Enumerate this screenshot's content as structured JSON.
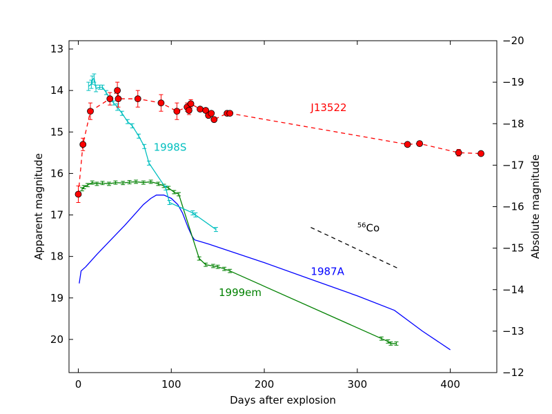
{
  "chart_data": {
    "type": "line",
    "xlabel": "Days after explosion",
    "ylabel_left": "Apparent magnitude",
    "ylabel_right": "Absolute magnitude",
    "xlim": [
      -10,
      450
    ],
    "ylim_left": [
      20.8,
      12.8
    ],
    "ylim_right": [
      -12,
      -20
    ],
    "x_ticks": [
      0,
      100,
      200,
      300,
      400
    ],
    "y_ticks_left": [
      13,
      14,
      15,
      16,
      17,
      18,
      19,
      20
    ],
    "y_ticks_right": [
      -20,
      -19,
      -18,
      -17,
      -16,
      -15,
      -14,
      -13,
      -12
    ],
    "grid": false,
    "series": [
      {
        "name": "J13522",
        "color": "#ff0000",
        "style": "dashed-with-markers",
        "points": [
          {
            "x": 0,
            "y": 16.5,
            "err": 0.2
          },
          {
            "x": 5,
            "y": 15.3,
            "err": 0.15
          },
          {
            "x": 13,
            "y": 14.5,
            "err": 0.2
          },
          {
            "x": 34,
            "y": 14.2,
            "err": 0.15
          },
          {
            "x": 42,
            "y": 14.0,
            "err": 0.2
          },
          {
            "x": 43,
            "y": 14.2,
            "err": 0.2
          },
          {
            "x": 64,
            "y": 14.2,
            "err": 0.2
          },
          {
            "x": 89,
            "y": 14.3,
            "err": 0.2
          },
          {
            "x": 106,
            "y": 14.5,
            "err": 0.2
          },
          {
            "x": 117,
            "y": 14.4,
            "err": 0.1
          },
          {
            "x": 119,
            "y": 14.48,
            "err": 0.1
          },
          {
            "x": 121,
            "y": 14.32,
            "err": 0.1
          },
          {
            "x": 131,
            "y": 14.45,
            "err": 0.05
          },
          {
            "x": 137,
            "y": 14.48,
            "err": 0.05
          },
          {
            "x": 140,
            "y": 14.6,
            "err": 0.05
          },
          {
            "x": 143,
            "y": 14.55,
            "err": 0.05
          },
          {
            "x": 146,
            "y": 14.7,
            "err": 0.05
          },
          {
            "x": 160,
            "y": 14.55,
            "err": 0.05
          },
          {
            "x": 163,
            "y": 14.55,
            "err": 0.05
          },
          {
            "x": 354,
            "y": 15.3,
            "err": 0.05
          },
          {
            "x": 367,
            "y": 15.28,
            "err": 0.05
          },
          {
            "x": 409,
            "y": 15.5,
            "err": 0.08
          },
          {
            "x": 433,
            "y": 15.52,
            "err": 0.05
          }
        ]
      },
      {
        "name": "1998S",
        "color": "#00bfbf",
        "style": "line-with-errorbars",
        "points": [
          {
            "x": 11,
            "y": 13.9,
            "err": 0.1
          },
          {
            "x": 14,
            "y": 13.85,
            "err": 0.1
          },
          {
            "x": 15,
            "y": 13.75,
            "err": 0.1
          },
          {
            "x": 17,
            "y": 13.7,
            "err": 0.1
          },
          {
            "x": 19,
            "y": 13.95,
            "err": 0.08
          },
          {
            "x": 23,
            "y": 13.92,
            "err": 0.05
          },
          {
            "x": 26,
            "y": 13.92,
            "err": 0.05
          },
          {
            "x": 30,
            "y": 14.05,
            "err": 0.05
          },
          {
            "x": 34,
            "y": 14.2,
            "err": 0.05
          },
          {
            "x": 38,
            "y": 14.3,
            "err": 0.05
          },
          {
            "x": 42,
            "y": 14.4,
            "err": 0.08
          },
          {
            "x": 47,
            "y": 14.55,
            "err": 0.05
          },
          {
            "x": 53,
            "y": 14.75,
            "err": 0.05
          },
          {
            "x": 58,
            "y": 14.85,
            "err": 0.05
          },
          {
            "x": 65,
            "y": 15.1,
            "err": 0.05
          },
          {
            "x": 71,
            "y": 15.35,
            "err": 0.05
          },
          {
            "x": 76,
            "y": 15.75,
            "err": 0.05
          },
          {
            "x": 94,
            "y": 16.35,
            "err": 0.05
          },
          {
            "x": 98,
            "y": 16.7,
            "err": 0.05
          },
          {
            "x": 123,
            "y": 16.95,
            "err": 0.05
          },
          {
            "x": 126,
            "y": 17.0,
            "err": 0.05
          },
          {
            "x": 148,
            "y": 17.35,
            "err": 0.05
          }
        ]
      },
      {
        "name": "1999em",
        "color": "#008000",
        "style": "line-with-errorbars",
        "points": [
          {
            "x": 4,
            "y": 16.38
          },
          {
            "x": 6,
            "y": 16.33
          },
          {
            "x": 10,
            "y": 16.28
          },
          {
            "x": 15,
            "y": 16.22
          },
          {
            "x": 20,
            "y": 16.25
          },
          {
            "x": 26,
            "y": 16.23
          },
          {
            "x": 33,
            "y": 16.25
          },
          {
            "x": 40,
            "y": 16.22
          },
          {
            "x": 48,
            "y": 16.23
          },
          {
            "x": 55,
            "y": 16.21
          },
          {
            "x": 62,
            "y": 16.2
          },
          {
            "x": 70,
            "y": 16.22
          },
          {
            "x": 78,
            "y": 16.2
          },
          {
            "x": 86,
            "y": 16.25
          },
          {
            "x": 92,
            "y": 16.3
          },
          {
            "x": 97,
            "y": 16.35
          },
          {
            "x": 103,
            "y": 16.45
          },
          {
            "x": 108,
            "y": 16.5
          },
          {
            "x": 130,
            "y": 18.05
          },
          {
            "x": 137,
            "y": 18.2
          },
          {
            "x": 145,
            "y": 18.23
          },
          {
            "x": 150,
            "y": 18.25
          },
          {
            "x": 157,
            "y": 18.3
          },
          {
            "x": 163,
            "y": 18.35
          },
          {
            "x": 326,
            "y": 19.98
          },
          {
            "x": 333,
            "y": 20.05
          },
          {
            "x": 336,
            "y": 20.1
          },
          {
            "x": 342,
            "y": 20.1
          }
        ]
      },
      {
        "name": "1987A",
        "color": "#0000ff",
        "style": "line",
        "points": [
          {
            "x": 1,
            "y": 18.65
          },
          {
            "x": 3,
            "y": 18.35
          },
          {
            "x": 8,
            "y": 18.25
          },
          {
            "x": 20,
            "y": 17.95
          },
          {
            "x": 35,
            "y": 17.6
          },
          {
            "x": 50,
            "y": 17.25
          },
          {
            "x": 60,
            "y": 17.0
          },
          {
            "x": 70,
            "y": 16.75
          },
          {
            "x": 78,
            "y": 16.6
          },
          {
            "x": 84,
            "y": 16.52
          },
          {
            "x": 92,
            "y": 16.52
          },
          {
            "x": 100,
            "y": 16.6
          },
          {
            "x": 107,
            "y": 16.75
          },
          {
            "x": 112,
            "y": 16.95
          },
          {
            "x": 118,
            "y": 17.3
          },
          {
            "x": 122,
            "y": 17.5
          },
          {
            "x": 125,
            "y": 17.6
          },
          {
            "x": 140,
            "y": 17.7
          },
          {
            "x": 200,
            "y": 18.15
          },
          {
            "x": 250,
            "y": 18.55
          },
          {
            "x": 300,
            "y": 18.95
          },
          {
            "x": 340,
            "y": 19.3
          },
          {
            "x": 370,
            "y": 19.8
          },
          {
            "x": 400,
            "y": 20.25
          }
        ]
      },
      {
        "name": "56Co",
        "color": "#000000",
        "style": "dashed",
        "points": [
          {
            "x": 250,
            "y": 17.3
          },
          {
            "x": 345,
            "y": 18.3
          }
        ]
      }
    ],
    "annotations": [
      {
        "text": "J13522",
        "x": 250,
        "y": 14.5,
        "color": "#ff0000"
      },
      {
        "text": "1998S",
        "x": 81,
        "y": 15.45,
        "color": "#00bfbf"
      },
      {
        "text": "1999em",
        "x": 151,
        "y": 18.95,
        "color": "#008000"
      },
      {
        "text": "1987A",
        "x": 250,
        "y": 18.45,
        "color": "#0000ff"
      },
      {
        "text": "Co",
        "superscript": "56",
        "x": 300,
        "y": 17.4,
        "color": "#000000"
      }
    ]
  }
}
